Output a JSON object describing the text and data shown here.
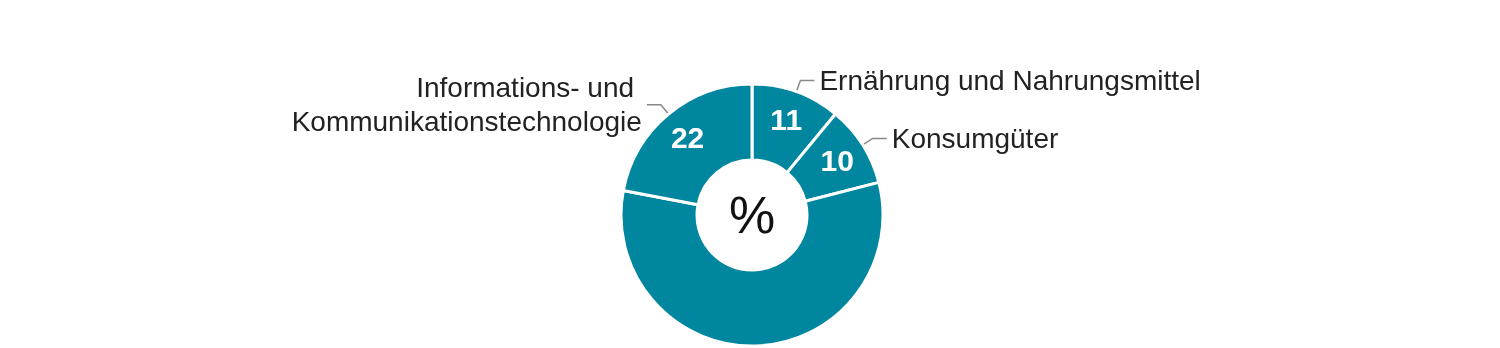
{
  "chart_data": {
    "type": "donut",
    "categories": [
      "Ernährung und Nahrungsmittel",
      "Konsumgüter",
      null,
      "Informations- und Kommunikationstechnologie"
    ],
    "values": [
      11,
      10,
      57,
      22
    ],
    "colors": [
      "#00879f",
      "#00879f",
      "#00879f",
      "#00879f"
    ],
    "value_labels": [
      "11",
      "10",
      null,
      "22"
    ],
    "annotations": [
      "%"
    ],
    "legend": false
  }
}
